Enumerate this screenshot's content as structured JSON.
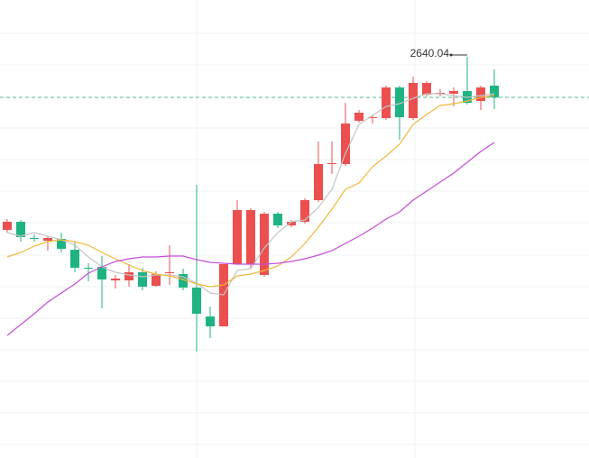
{
  "chart_data": {
    "type": "candlestick",
    "ylim": [
      2195,
      2703
    ],
    "up_color": "#eb4f4f",
    "down_color": "#1fb383",
    "open": [
      2448,
      2457,
      2439,
      2436,
      2438,
      2426,
      2406,
      2407,
      2392,
      2392,
      2401,
      2386,
      2400,
      2399,
      2384,
      2352,
      2341,
      2410,
      2410,
      2398,
      2466,
      2453,
      2457,
      2481,
      2521,
      2521,
      2569,
      2572,
      2572,
      2606,
      2572,
      2598,
      2599,
      2599,
      2602,
      2591,
      2608
    ],
    "high": [
      2460,
      2459,
      2443,
      2441,
      2445,
      2435,
      2411,
      2419,
      2398,
      2410,
      2406,
      2402,
      2431,
      2405,
      2498,
      2363,
      2410,
      2481,
      2472,
      2468,
      2468,
      2459,
      2483,
      2546,
      2546,
      2589,
      2581,
      2576,
      2608,
      2608,
      2618,
      2613,
      2604,
      2606,
      2640.04,
      2608,
      2626
    ],
    "low": [
      2445,
      2435,
      2435,
      2425,
      2423,
      2401,
      2391,
      2361,
      2383,
      2385,
      2381,
      2385,
      2387,
      2381,
      2313,
      2328,
      2341,
      2410,
      2405,
      2396,
      2450,
      2451,
      2455,
      2479,
      2510,
      2519,
      2567,
      2566,
      2570,
      2548,
      2570,
      2596,
      2596,
      2585,
      2587,
      2581,
      2582
    ],
    "close": [
      2457,
      2440,
      2438,
      2439,
      2427,
      2406,
      2405,
      2393,
      2394,
      2401,
      2385,
      2399,
      2401,
      2384,
      2355,
      2341,
      2410,
      2470,
      2470,
      2466,
      2453,
      2457,
      2481,
      2521,
      2522,
      2566,
      2578,
      2573,
      2606,
      2573,
      2611,
      2611,
      2600,
      2602,
      2589,
      2606,
      2595
    ],
    "lines": [
      {
        "color": "#c4c4c4",
        "values": [
          2445,
          2441,
          2445,
          2441,
          2437,
          2431,
          2418,
          2407,
          2401,
          2398,
          2396,
          2398,
          2398,
          2396,
          2389,
          2378,
          2376,
          2403,
          2405,
          2428,
          2445,
          2457,
          2459,
          2473,
          2493,
          2533,
          2565,
          2575,
          2585,
          2588,
          2594,
          2599,
          2599,
          2597,
          2595,
          2597,
          2599
        ]
      },
      {
        "color": "#f2b73c",
        "values": [
          2418,
          2423,
          2430,
          2435,
          2437,
          2435,
          2431,
          2423,
          2416,
          2409,
          2403,
          2399,
          2397,
          2393,
          2388,
          2385,
          2387,
          2397,
          2399,
          2403,
          2408,
          2418,
          2433,
          2451,
          2471,
          2493,
          2500,
          2518,
          2530,
          2543,
          2565,
          2576,
          2586,
          2588,
          2591,
          2595,
          2597
        ]
      },
      {
        "color": "#c54ed6",
        "values": [
          2331,
          2343,
          2355,
          2368,
          2378,
          2388,
          2400,
          2407,
          2413,
          2416,
          2418,
          2418,
          2419,
          2419,
          2415,
          2412,
          2411,
          2410,
          2410,
          2410,
          2411,
          2413,
          2416,
          2420,
          2425,
          2433,
          2441,
          2450,
          2460,
          2468,
          2481,
          2491,
          2501,
          2511,
          2523,
          2535,
          2545
        ]
      }
    ]
  }
}
